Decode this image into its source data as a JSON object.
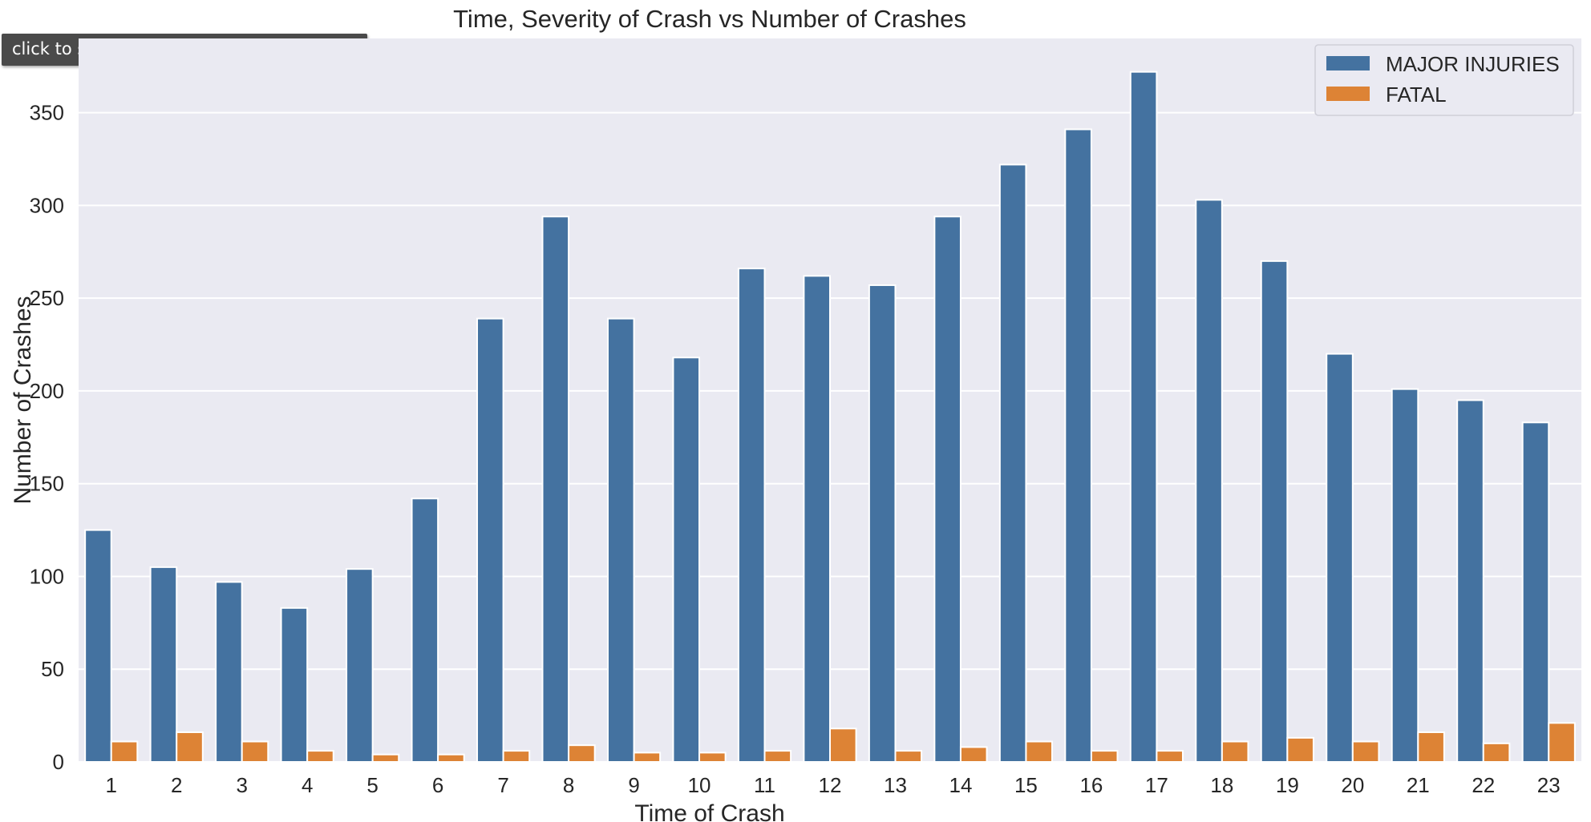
{
  "tooltip": {
    "text": "click to scroll output; double click to hide"
  },
  "chart_data": {
    "type": "bar",
    "title": "Time, Severity of Crash vs Number of Crashes",
    "xlabel": "Time of Crash",
    "ylabel": "Number of Crashes",
    "categories": [
      "1",
      "2",
      "3",
      "4",
      "5",
      "6",
      "7",
      "8",
      "9",
      "10",
      "11",
      "12",
      "13",
      "14",
      "15",
      "16",
      "17",
      "18",
      "19",
      "20",
      "21",
      "22",
      "23"
    ],
    "series": [
      {
        "name": "MAJOR INJURIES",
        "color": "#4472a0",
        "values": [
          125,
          105,
          97,
          83,
          104,
          142,
          239,
          294,
          239,
          218,
          266,
          262,
          257,
          294,
          322,
          341,
          372,
          303,
          270,
          220,
          201,
          195,
          183
        ]
      },
      {
        "name": "FATAL",
        "color": "#dd8335",
        "values": [
          11,
          16,
          11,
          6,
          4,
          4,
          6,
          9,
          5,
          5,
          6,
          18,
          6,
          8,
          11,
          6,
          6,
          11,
          13,
          11,
          16,
          10,
          21
        ]
      }
    ],
    "yticks": [
      0,
      50,
      100,
      150,
      200,
      250,
      300,
      350
    ],
    "ylim": [
      0,
      390
    ],
    "grid": true,
    "legend_position": "top-right",
    "background": "#eaeaf2"
  }
}
